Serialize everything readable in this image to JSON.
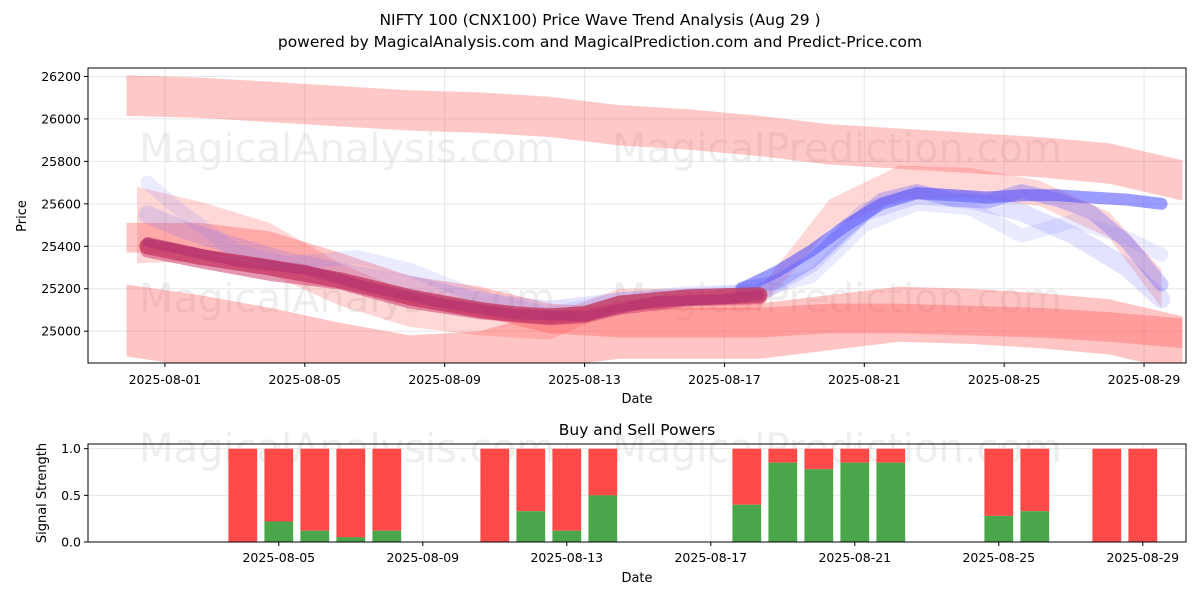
{
  "chart_data": [
    {
      "type": "area",
      "title_line1": "NIFTY 100 (CNX100) Price Wave Trend Analysis (Aug 29 )",
      "title_line2": "powered by MagicalAnalysis.com and MagicalPrediction.com and Predict-Price.com",
      "xlabel": "Date",
      "ylabel": "Price",
      "xlim": [
        -1.2,
        30.2
      ],
      "ylim": [
        24850,
        26240
      ],
      "x_tick_values": [
        1,
        5,
        9,
        13,
        17,
        21,
        25,
        29
      ],
      "x_tick_labels": [
        "2025-08-01",
        "2025-08-05",
        "2025-08-09",
        "2025-08-13",
        "2025-08-17",
        "2025-08-21",
        "2025-08-25",
        "2025-08-29"
      ],
      "y_ticks": [
        25000,
        25200,
        25400,
        25600,
        25800,
        26000,
        26200
      ],
      "watermarks": [
        "MagicalAnalysis.com",
        "MagicalPrediction.com",
        "MagicalAnalysis.com",
        "MagicalPrediction.com"
      ],
      "red_bands": [
        {
          "x": [
            -0.1,
            2,
            4,
            6,
            8,
            10,
            12,
            14,
            16,
            18,
            20,
            22,
            24,
            26,
            28,
            30.1
          ],
          "center": [
            26110,
            26100,
            26080,
            26060,
            26040,
            26030,
            26010,
            25970,
            25950,
            25920,
            25880,
            25860,
            25840,
            25820,
            25790,
            25710
          ],
          "half": [
            95,
            95,
            95,
            95,
            95,
            95,
            95,
            95,
            95,
            95,
            95,
            95,
            95,
            95,
            95,
            95
          ],
          "opacity": 0.3
        },
        {
          "x": [
            -0.1,
            2,
            4,
            6,
            8,
            10,
            12,
            14,
            16,
            18,
            20,
            22,
            24,
            26,
            28,
            30.1
          ],
          "center": [
            25050,
            25000,
            24940,
            24880,
            24830,
            24860,
            24960,
            25000,
            25000,
            25000,
            25040,
            25080,
            25070,
            25050,
            25020,
            24940
          ],
          "half": [
            170,
            170,
            170,
            160,
            150,
            140,
            130,
            130,
            130,
            130,
            130,
            130,
            130,
            130,
            130,
            130
          ],
          "opacity": 0.32
        },
        {
          "x": [
            -0.1,
            2,
            4,
            6,
            8,
            10,
            12,
            14,
            16,
            18,
            20,
            22,
            24,
            26,
            28,
            30.1
          ],
          "center": [
            25440,
            25440,
            25400,
            25300,
            25190,
            25140,
            25060,
            25040,
            25040,
            25040,
            25060,
            25060,
            25050,
            25040,
            25020,
            24990
          ],
          "half": [
            70,
            70,
            70,
            70,
            70,
            70,
            70,
            70,
            70,
            70,
            70,
            70,
            70,
            70,
            70,
            70
          ],
          "opacity": 0.32
        },
        {
          "x": [
            0.2,
            2,
            4,
            6,
            8,
            10,
            12,
            14,
            16,
            18,
            19,
            20,
            22,
            24,
            26,
            28,
            29.5
          ],
          "center": [
            25500,
            25470,
            25390,
            25220,
            25100,
            25050,
            25020,
            25150,
            25150,
            25150,
            25350,
            25550,
            25700,
            25700,
            25650,
            25500,
            25200
          ],
          "half": [
            180,
            140,
            120,
            100,
            80,
            70,
            60,
            50,
            50,
            50,
            60,
            70,
            80,
            70,
            60,
            60,
            90
          ],
          "opacity": 0.22
        }
      ],
      "price_lines": [
        {
          "color": "#c0385f",
          "x": [
            0.5,
            2,
            4,
            6,
            8,
            10,
            11,
            12,
            13,
            14,
            16,
            18
          ],
          "y": [
            25400,
            25350,
            25300,
            25240,
            25160,
            25100,
            25080,
            25070,
            25080,
            25130,
            25160,
            25170
          ],
          "width": 16,
          "opacity": 0.8
        },
        {
          "color": "#d04070",
          "x": [
            0.5,
            2,
            4,
            6,
            8,
            10,
            12,
            13,
            14,
            16,
            18
          ],
          "y": [
            25380,
            25330,
            25270,
            25230,
            25140,
            25090,
            25060,
            25070,
            25110,
            25150,
            25160
          ],
          "width": 14,
          "opacity": 0.55
        },
        {
          "color": "#b03070",
          "x": [
            0.5,
            3,
            5,
            7,
            9,
            11,
            13,
            15,
            17,
            18
          ],
          "y": [
            25420,
            25330,
            25290,
            25200,
            25130,
            25080,
            25070,
            25140,
            25150,
            25170
          ],
          "width": 10,
          "opacity": 0.6
        }
      ],
      "blue_lines": [
        {
          "color": "#3a3aff",
          "x": [
            17.5,
            18.5,
            19.5,
            20.5,
            21.5,
            22.5,
            23.5,
            24.5,
            25.5,
            26.5,
            27.5,
            28.5,
            29.5
          ],
          "y": [
            25200,
            25280,
            25380,
            25500,
            25600,
            25650,
            25640,
            25630,
            25640,
            25640,
            25630,
            25620,
            25600
          ],
          "width": 12,
          "opacity": 0.5
        },
        {
          "color": "#5555ff",
          "x": [
            17.5,
            18.5,
            19.5,
            20.5,
            21.5,
            22.5,
            23.5,
            24.5,
            25.5,
            26.5,
            27.5,
            28.5,
            29.5
          ],
          "y": [
            25200,
            25230,
            25330,
            25480,
            25620,
            25660,
            25620,
            25610,
            25660,
            25620,
            25560,
            25420,
            25220
          ],
          "width": 14,
          "opacity": 0.3
        },
        {
          "color": "#6666ff",
          "x": [
            0.5,
            1.5,
            3,
            4.5,
            6,
            8,
            10,
            12,
            14,
            16,
            18,
            19.5,
            21,
            22.5,
            24,
            25.5,
            27,
            28.5,
            29.5
          ],
          "y": [
            25550,
            25480,
            25400,
            25330,
            25280,
            25220,
            25140,
            25100,
            25140,
            25160,
            25180,
            25320,
            25560,
            25640,
            25620,
            25560,
            25450,
            25300,
            25150
          ],
          "width": 18,
          "opacity": 0.18
        },
        {
          "color": "#7777ff",
          "x": [
            0.5,
            1.5,
            3,
            4.5,
            6.5,
            8,
            10,
            12,
            14,
            16,
            18,
            19.5,
            21,
            22.5,
            24,
            25.5,
            27,
            28.5,
            29.5
          ],
          "y": [
            25700,
            25560,
            25380,
            25320,
            25350,
            25290,
            25160,
            25080,
            25150,
            25180,
            25190,
            25260,
            25500,
            25600,
            25580,
            25450,
            25520,
            25440,
            25360
          ],
          "width": 14,
          "opacity": 0.15
        }
      ]
    },
    {
      "type": "bar",
      "title": "Buy and Sell Powers",
      "xlabel": "Date",
      "ylabel": "Signal Strength",
      "xlim": [
        -0.3,
        30.2
      ],
      "ylim": [
        0,
        1.05
      ],
      "y_ticks": [
        0.0,
        0.5,
        1.0
      ],
      "y_tick_labels": [
        "0.0",
        "0.5",
        "1.0"
      ],
      "x_tick_values": [
        5,
        9,
        13,
        17,
        21,
        25,
        29
      ],
      "x_tick_labels": [
        "2025-08-05",
        "2025-08-09",
        "2025-08-13",
        "2025-08-17",
        "2025-08-21",
        "2025-08-25",
        "2025-08-29"
      ],
      "watermarks": [
        "MagicalAnalysis.com",
        "MagicalPrediction.com"
      ],
      "buy_color": "#4aa64a",
      "sell_color": "#ff4a4a",
      "bars": [
        {
          "date": "2025-08-04",
          "x": 4,
          "buy": 0.0
        },
        {
          "date": "2025-08-05",
          "x": 5,
          "buy": 0.22
        },
        {
          "date": "2025-08-06",
          "x": 6,
          "buy": 0.12
        },
        {
          "date": "2025-08-07",
          "x": 7,
          "buy": 0.05
        },
        {
          "date": "2025-08-08",
          "x": 8,
          "buy": 0.12
        },
        {
          "date": "2025-08-11",
          "x": 11,
          "buy": 0.0
        },
        {
          "date": "2025-08-12",
          "x": 12,
          "buy": 0.33
        },
        {
          "date": "2025-08-13",
          "x": 13,
          "buy": 0.12
        },
        {
          "date": "2025-08-14",
          "x": 14,
          "buy": 0.5
        },
        {
          "date": "2025-08-18",
          "x": 18,
          "buy": 0.4
        },
        {
          "date": "2025-08-19",
          "x": 19,
          "buy": 0.85
        },
        {
          "date": "2025-08-20",
          "x": 20,
          "buy": 0.78
        },
        {
          "date": "2025-08-21",
          "x": 21,
          "buy": 0.85
        },
        {
          "date": "2025-08-22",
          "x": 22,
          "buy": 0.85
        },
        {
          "date": "2025-08-25",
          "x": 25,
          "buy": 0.28
        },
        {
          "date": "2025-08-26",
          "x": 26,
          "buy": 0.33
        },
        {
          "date": "2025-08-28",
          "x": 28,
          "buy": 0.0
        },
        {
          "date": "2025-08-29",
          "x": 29,
          "buy": 0.0
        }
      ]
    }
  ]
}
